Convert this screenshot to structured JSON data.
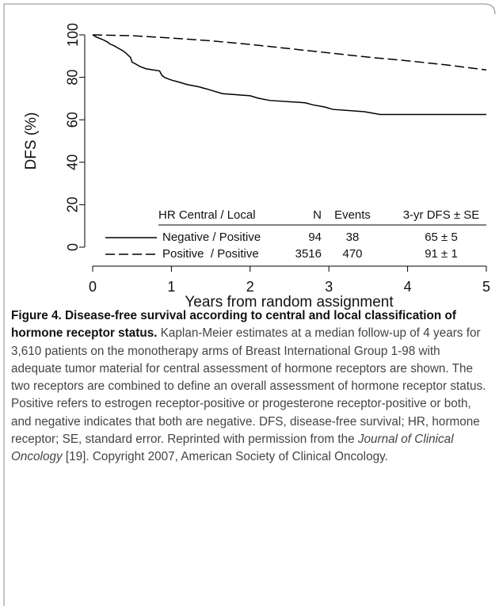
{
  "chart_data": {
    "type": "line",
    "xlabel": "Years from random assignment",
    "ylabel": "DFS (%)",
    "xlim": [
      0,
      5
    ],
    "ylim": [
      0,
      100
    ],
    "xticks": [
      0,
      1,
      2,
      3,
      4,
      5
    ],
    "yticks": [
      0,
      20,
      40,
      60,
      80,
      100
    ],
    "legend_columns": [
      "HR Central / Local",
      "N",
      "Events",
      "3-yr DFS ± SE"
    ],
    "series": [
      {
        "name": "Negative / Positive",
        "n": 94,
        "events": 38,
        "dfs_se": "65 ± 5",
        "color": "#000000",
        "line_style": "solid",
        "x": [
          0,
          0.05,
          0.12,
          0.18,
          0.22,
          0.28,
          0.33,
          0.38,
          0.42,
          0.45,
          0.48,
          0.5,
          0.55,
          0.6,
          0.68,
          0.85,
          0.88,
          0.92,
          1.0,
          1.1,
          1.2,
          1.35,
          1.45,
          1.55,
          1.65,
          2.0,
          2.1,
          2.25,
          2.7,
          2.8,
          2.95,
          3.05,
          3.45,
          3.65,
          5.0
        ],
        "values": [
          100,
          98.9,
          97.9,
          96.8,
          95.7,
          94.7,
          93.6,
          92.6,
          91.5,
          90.4,
          89.4,
          87.2,
          86.2,
          85.1,
          84.0,
          83.0,
          80.9,
          79.8,
          78.7,
          77.7,
          76.6,
          75.5,
          74.5,
          73.4,
          72.3,
          71.3,
          70.2,
          69.1,
          68.0,
          67.0,
          66.0,
          64.9,
          63.8,
          62.5,
          62.5
        ]
      },
      {
        "name": "Positive  / Positive",
        "n": 3516,
        "events": 470,
        "dfs_se": "91 ± 1",
        "color": "#000000",
        "line_style": "dashed",
        "x": [
          0,
          0.5,
          1,
          1.5,
          2,
          2.5,
          3,
          3.5,
          4,
          4.5,
          5
        ],
        "values": [
          100,
          99.6,
          98.5,
          97.2,
          95.5,
          93.5,
          91.5,
          89.5,
          87.8,
          85.8,
          83.5
        ]
      }
    ]
  },
  "caption": {
    "title": "Figure 4. Disease-free survival according to central and local classification of hormone receptor status.",
    "text_before": "Kaplan-Meier estimates at a median follow-up of 4 years for 3,610 patients on the monotherapy arms of Breast International Group 1-98 with adequate tumor material for central assessment of hormone receptors are shown. The two receptors are combined to define an overall assessment of hormone receptor status. Positive refers to estrogen receptor-positive or progesterone receptor-positive or both, and negative indicates that both are negative. DFS, disease-free survival; HR, hormone receptor; SE, standard error. Reprinted with permission from the",
    "journal": "Journal of Clinical Oncology",
    "text_after": "[19]. Copyright 2007, American Society of Clinical Oncology."
  }
}
